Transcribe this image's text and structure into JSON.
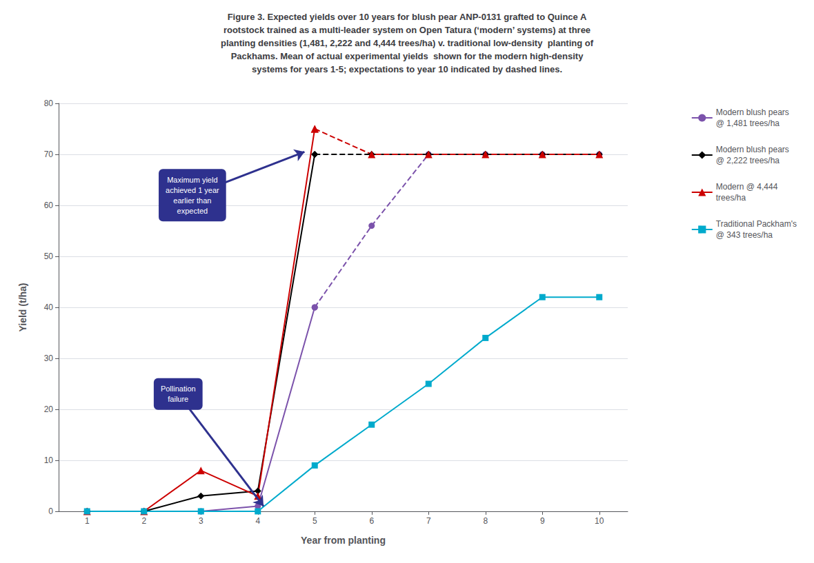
{
  "chart_data": {
    "type": "line",
    "title": "Figure 3. Expected yields over 10 years for blush pear ANP-0131 grafted to Quince A\nrootstock trained as a multi-leader system on Open Tatura (‘modern’ systems) at three\nplanting densities (1,481, 2,222 and 4,444 trees/ha) v. traditional low-density  planting of\nPackhams. Mean of actual experimental yields  shown for the modern high-density\nsystems for years 1-5; expectations to year 10 indicated by dashed lines.",
    "x_label": "Year from planting",
    "y_label": "Yield (t/ha)",
    "xlim": [
      0.5,
      10.5
    ],
    "ylim": [
      0,
      80
    ],
    "xticks": [
      1,
      2,
      3,
      4,
      5,
      6,
      7,
      8,
      9,
      10
    ],
    "yticks": [
      0,
      10,
      20,
      30,
      40,
      50,
      60,
      70,
      80
    ],
    "grid": "y",
    "legend": "right",
    "series": [
      {
        "name": "Modern blush pears\n@ 1,481 trees/ha",
        "color": "#7B52AB",
        "marker": "circle",
        "line_style": "solid",
        "x": [
          1,
          2,
          3,
          4,
          5
        ],
        "values": [
          0,
          0,
          0,
          1,
          40
        ]
      },
      {
        "name": "Modern blush pears\n@ 1,481 trees/ha",
        "color": "#7B52AB",
        "marker": "circle",
        "line_style": "dashed",
        "x": [
          5,
          6,
          7,
          8,
          9,
          10
        ],
        "values": [
          40,
          56,
          70,
          70,
          70,
          70
        ]
      },
      {
        "name": "Modern blush pears\n@ 2,222 trees/ha",
        "color": "#000000",
        "marker": "diamond",
        "line_style": "solid",
        "x": [
          1,
          2,
          3,
          4,
          5
        ],
        "values": [
          0,
          0,
          3,
          4,
          70
        ]
      },
      {
        "name": "Modern blush pears\n@ 2,222 trees/ha",
        "color": "#000000",
        "marker": "diamond",
        "line_style": "dashed",
        "x": [
          5,
          6,
          7,
          8,
          9,
          10
        ],
        "values": [
          70,
          70,
          70,
          70,
          70,
          70
        ]
      },
      {
        "name": "Modern @ 4,444\ntrees/ha",
        "color": "#CC0000",
        "marker": "triangle",
        "line_style": "solid",
        "x": [
          1,
          2,
          3,
          4,
          5
        ],
        "values": [
          0,
          0,
          8,
          3,
          75
        ]
      },
      {
        "name": "Modern @ 4,444\ntrees/ha",
        "color": "#CC0000",
        "marker": "triangle",
        "line_style": "dashed",
        "x": [
          5,
          6,
          7,
          8,
          9,
          10
        ],
        "values": [
          75,
          70,
          70,
          70,
          70,
          70
        ]
      },
      {
        "name": "Traditional Packham's\n@ 343 trees/ha",
        "color": "#00AACC",
        "marker": "square",
        "line_style": "solid",
        "x": [
          1,
          2,
          3,
          4,
          5,
          6,
          7,
          8,
          9,
          10
        ],
        "values": [
          0,
          0,
          0,
          0,
          9,
          17,
          25,
          34,
          42,
          42
        ]
      }
    ],
    "annotations": [
      {
        "text": "Maximum yield\nachieved 1 year\nearlier than\nexpected",
        "xy": [
          4.82,
          70.5
        ],
        "xytext": [
          2.85,
          62
        ],
        "color": "#2E318E"
      },
      {
        "text": "Pollination\nfailure",
        "xy": [
          4.1,
          1.0
        ],
        "xytext": [
          2.6,
          23
        ],
        "color": "#2E318E"
      }
    ]
  }
}
